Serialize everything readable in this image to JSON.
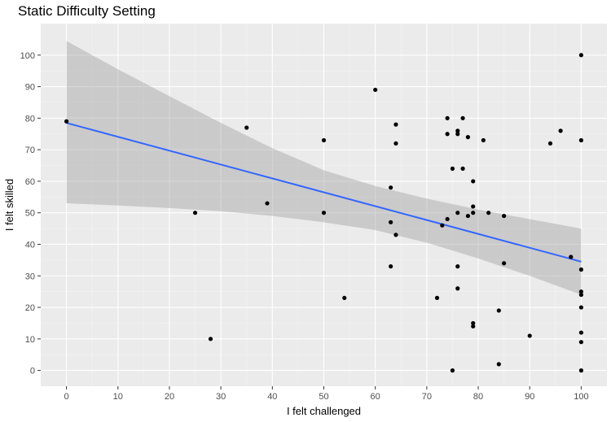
{
  "chart_data": {
    "type": "scatter",
    "title": "Static Difficulty Setting",
    "xlabel": "I felt challenged",
    "ylabel": "I felt skilled",
    "xlim": [
      -5,
      105
    ],
    "ylim": [
      -5,
      110
    ],
    "x_ticks": [
      0,
      10,
      20,
      30,
      40,
      50,
      60,
      70,
      80,
      90,
      100
    ],
    "y_ticks": [
      0,
      10,
      20,
      30,
      40,
      50,
      60,
      70,
      80,
      90,
      100
    ],
    "grid": true,
    "background": "#ebebeb",
    "point_color": "#000000",
    "line_color": "#3366ff",
    "band_color": "#999999",
    "points": [
      {
        "x": 0,
        "y": 79
      },
      {
        "x": 25,
        "y": 50
      },
      {
        "x": 28,
        "y": 10
      },
      {
        "x": 35,
        "y": 77
      },
      {
        "x": 39,
        "y": 53
      },
      {
        "x": 50,
        "y": 73
      },
      {
        "x": 50,
        "y": 50
      },
      {
        "x": 54,
        "y": 23
      },
      {
        "x": 60,
        "y": 89
      },
      {
        "x": 63,
        "y": 58
      },
      {
        "x": 63,
        "y": 47
      },
      {
        "x": 63,
        "y": 33
      },
      {
        "x": 64,
        "y": 78
      },
      {
        "x": 64,
        "y": 72
      },
      {
        "x": 64,
        "y": 43
      },
      {
        "x": 72,
        "y": 23
      },
      {
        "x": 73,
        "y": 46
      },
      {
        "x": 74,
        "y": 80
      },
      {
        "x": 74,
        "y": 75
      },
      {
        "x": 74,
        "y": 48
      },
      {
        "x": 75,
        "y": 64
      },
      {
        "x": 75,
        "y": 0
      },
      {
        "x": 76,
        "y": 76
      },
      {
        "x": 76,
        "y": 75
      },
      {
        "x": 76,
        "y": 50
      },
      {
        "x": 76,
        "y": 33
      },
      {
        "x": 76,
        "y": 26
      },
      {
        "x": 77,
        "y": 80
      },
      {
        "x": 77,
        "y": 64
      },
      {
        "x": 78,
        "y": 74
      },
      {
        "x": 78,
        "y": 49
      },
      {
        "x": 79,
        "y": 60
      },
      {
        "x": 79,
        "y": 52
      },
      {
        "x": 79,
        "y": 50
      },
      {
        "x": 79,
        "y": 15
      },
      {
        "x": 79,
        "y": 14
      },
      {
        "x": 81,
        "y": 73
      },
      {
        "x": 82,
        "y": 50
      },
      {
        "x": 84,
        "y": 19
      },
      {
        "x": 84,
        "y": 2
      },
      {
        "x": 85,
        "y": 49
      },
      {
        "x": 85,
        "y": 34
      },
      {
        "x": 90,
        "y": 11
      },
      {
        "x": 94,
        "y": 72
      },
      {
        "x": 96,
        "y": 76
      },
      {
        "x": 98,
        "y": 36
      },
      {
        "x": 100,
        "y": 100
      },
      {
        "x": 100,
        "y": 73
      },
      {
        "x": 100,
        "y": 32
      },
      {
        "x": 100,
        "y": 25
      },
      {
        "x": 100,
        "y": 24
      },
      {
        "x": 100,
        "y": 20
      },
      {
        "x": 100,
        "y": 12
      },
      {
        "x": 100,
        "y": 9
      },
      {
        "x": 100,
        "y": 0
      }
    ],
    "trend": {
      "x": [
        0,
        100
      ],
      "y": [
        78.5,
        34.5
      ]
    },
    "band": {
      "x": [
        0,
        10,
        20,
        30,
        40,
        50,
        60,
        70,
        80,
        90,
        100
      ],
      "lower": [
        53,
        52.3,
        51.5,
        50.5,
        49,
        47,
        44.5,
        40.5,
        35.5,
        30,
        24
      ],
      "upper": [
        104.5,
        95.5,
        87,
        78.5,
        70.5,
        63.5,
        58.5,
        54.5,
        51,
        48,
        45
      ]
    }
  }
}
